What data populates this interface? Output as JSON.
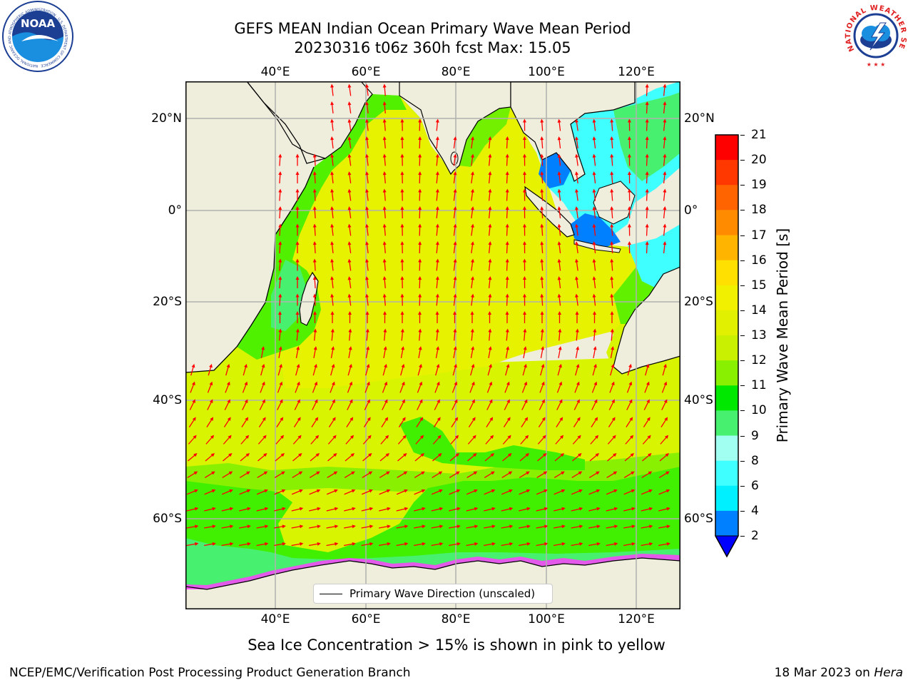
{
  "title": {
    "line1": "GEFS MEAN Indian Ocean Primary Wave Mean Period",
    "line2": "20230316 t06z 360h fcst   Max: 15.05"
  },
  "axes": {
    "lon_labels": [
      "40°E",
      "60°E",
      "80°E",
      "100°E",
      "120°E"
    ],
    "lat_labels": [
      "20°N",
      "0°",
      "20°S",
      "40°S",
      "60°S"
    ]
  },
  "colorbar": {
    "label": "Primary Wave Mean Period [s]",
    "ticks": [
      "21",
      "20",
      "19",
      "18",
      "17",
      "16",
      "15",
      "14",
      "13",
      "12",
      "11",
      "10",
      "9",
      "8",
      "6",
      "4",
      "2"
    ],
    "colors": [
      "#ff0000",
      "#ff3800",
      "#ff6400",
      "#ff8c00",
      "#ffb400",
      "#ffe000",
      "#f0f000",
      "#e0f000",
      "#c8f000",
      "#88f000",
      "#00e800",
      "#48f070",
      "#a0fff0",
      "#40ffff",
      "#00f0ff",
      "#0080ff"
    ],
    "extend_color": "#0000ff"
  },
  "legend": {
    "label": "Primary Wave Direction (unscaled)"
  },
  "caption": "Sea Ice Concentration > 15% is shown in pink to yellow",
  "footer": {
    "left": "NCEP/EMC/Verification Post Processing Product Generation Branch",
    "right_prefix": "18 Mar 2023 on ",
    "right_host": "Hera"
  },
  "logos": {
    "noaa": {
      "text": "NOAA",
      "ring": "NATIONAL OCEANIC AND ATMOSPHERIC ADMINISTRATION · U.S. DEPARTMENT OF COMMERCE"
    },
    "nws": {
      "ring": "NATIONAL WEATHER SERVICE"
    }
  },
  "colors": {
    "land": "#efeedd",
    "ocean_main": "#d8f400",
    "ocean_green": "#40f000",
    "ocean_cyan": "#40ffff",
    "ocean_blue": "#0080ff",
    "arrow": "#ff0000",
    "ice_pink": "#ff40ff"
  }
}
